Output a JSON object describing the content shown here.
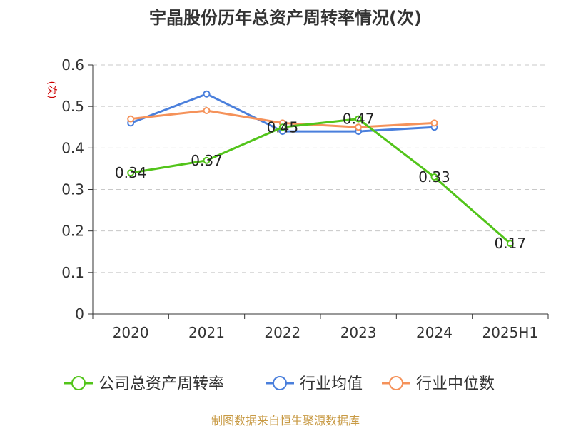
{
  "chart_data": {
    "type": "line",
    "title": "宇晶股份历年总资产周转率情况(次)",
    "ylabel": "(次)",
    "ylim": [
      0,
      0.6
    ],
    "yticks": [
      "0",
      "0.1",
      "0.2",
      "0.3",
      "0.4",
      "0.5",
      "0.6"
    ],
    "categories": [
      "2020",
      "2021",
      "2022",
      "2023",
      "2024",
      "2025H1"
    ],
    "grid": true,
    "legend_position": "bottom",
    "series": [
      {
        "name": "公司总资产周转率",
        "color": "#52c41a",
        "values": [
          0.34,
          0.37,
          0.45,
          0.47,
          0.33,
          0.17
        ],
        "labels": [
          "0.34",
          "0.37",
          "0.45",
          "0.47",
          "0.33",
          "0.17"
        ]
      },
      {
        "name": "行业均值",
        "color": "#4a7fdc",
        "values": [
          0.46,
          0.53,
          0.44,
          0.44,
          0.45,
          null
        ]
      },
      {
        "name": "行业中位数",
        "color": "#f5925a",
        "values": [
          0.47,
          0.49,
          0.46,
          0.45,
          0.46,
          null
        ]
      }
    ],
    "source": "制图数据来自恒生聚源数据库"
  }
}
